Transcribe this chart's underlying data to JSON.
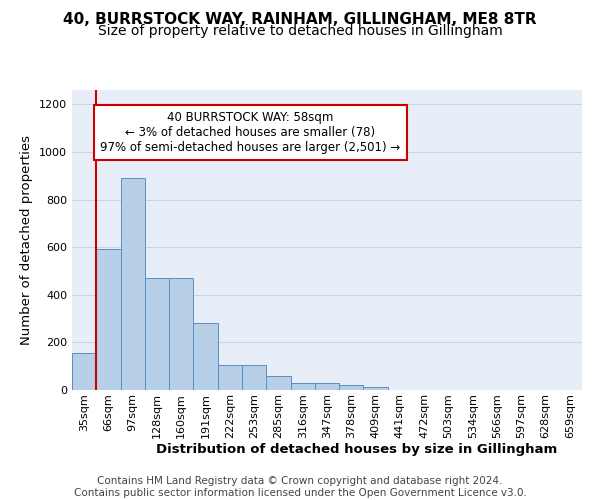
{
  "title_line1": "40, BURRSTOCK WAY, RAINHAM, GILLINGHAM, ME8 8TR",
  "title_line2": "Size of property relative to detached houses in Gillingham",
  "xlabel": "Distribution of detached houses by size in Gillingham",
  "ylabel": "Number of detached properties",
  "footnote": "Contains HM Land Registry data © Crown copyright and database right 2024.\nContains public sector information licensed under the Open Government Licence v3.0.",
  "annotation_line1": "40 BURRSTOCK WAY: 58sqm",
  "annotation_line2": "← 3% of detached houses are smaller (78)",
  "annotation_line3": "97% of semi-detached houses are larger (2,501) →",
  "bar_labels": [
    "35sqm",
    "66sqm",
    "97sqm",
    "128sqm",
    "160sqm",
    "191sqm",
    "222sqm",
    "253sqm",
    "285sqm",
    "316sqm",
    "347sqm",
    "378sqm",
    "409sqm",
    "441sqm",
    "472sqm",
    "503sqm",
    "534sqm",
    "566sqm",
    "597sqm",
    "628sqm",
    "659sqm"
  ],
  "bar_values": [
    155,
    593,
    890,
    470,
    470,
    283,
    103,
    103,
    60,
    30,
    28,
    22,
    14,
    0,
    0,
    0,
    0,
    0,
    0,
    0,
    0
  ],
  "bar_color": "#b8cfe8",
  "bar_edge_color": "#5b8ec4",
  "ylim": [
    0,
    1260
  ],
  "yticks": [
    0,
    200,
    400,
    600,
    800,
    1000,
    1200
  ],
  "grid_color": "#c8d4e8",
  "bg_color": "#e8eef8",
  "property_line_color": "#cc0000",
  "annotation_box_color": "#cc0000",
  "title_fontsize": 11,
  "subtitle_fontsize": 10,
  "axis_label_fontsize": 9.5,
  "tick_fontsize": 8,
  "footnote_fontsize": 7.5,
  "marker_bar_index": 1
}
